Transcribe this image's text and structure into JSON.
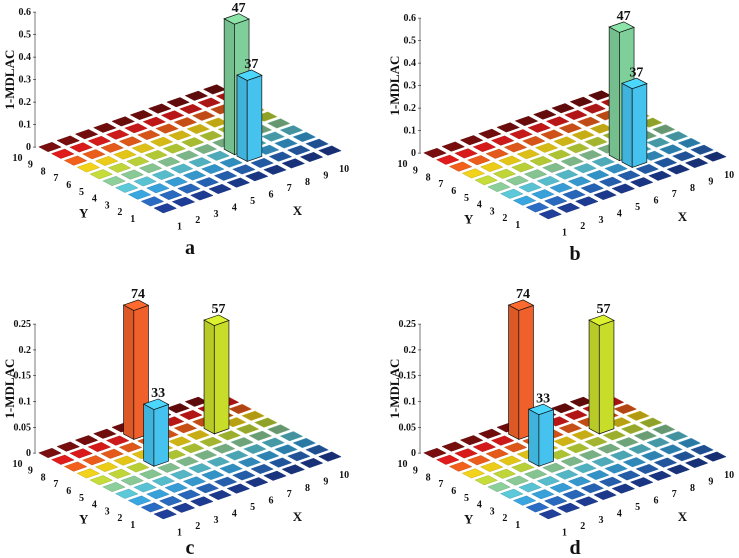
{
  "chart_data": [
    {
      "type": "bar3d",
      "panel_label": "a",
      "xlabel": "X",
      "ylabel": "Y",
      "zlabel": "1-MDLAC",
      "xticks": [
        "1",
        "2",
        "3",
        "4",
        "5",
        "6",
        "7",
        "8",
        "9",
        "10"
      ],
      "yticks": [
        "1",
        "2",
        "3",
        "4",
        "5",
        "6",
        "7",
        "8",
        "9",
        "10"
      ],
      "zticks": [
        "0",
        "0.1",
        "0.2",
        "0.3",
        "0.4",
        "0.5",
        "0.6"
      ],
      "zlim": [
        0,
        0.6
      ],
      "bars": [
        {
          "label": "47",
          "value": 0.58,
          "x": 7,
          "y": 4,
          "color": "#7fcf9a"
        },
        {
          "label": "37",
          "value": 0.36,
          "x": 7,
          "y": 3,
          "color": "#45c3ee"
        }
      ]
    },
    {
      "type": "bar3d",
      "panel_label": "b",
      "xlabel": "X",
      "ylabel": "Y",
      "zlabel": "1-MDLAC",
      "xticks": [
        "1",
        "2",
        "3",
        "4",
        "5",
        "6",
        "7",
        "8",
        "9",
        "10"
      ],
      "yticks": [
        "1",
        "2",
        "3",
        "4",
        "5",
        "6",
        "7",
        "8",
        "9",
        "10"
      ],
      "zticks": [
        "0",
        "0.1",
        "0.2",
        "0.3",
        "0.4",
        "0.5",
        "0.6"
      ],
      "zlim": [
        0,
        0.6
      ],
      "bars": [
        {
          "label": "47",
          "value": 0.57,
          "x": 7,
          "y": 4,
          "color": "#7fcf9a"
        },
        {
          "label": "37",
          "value": 0.35,
          "x": 7,
          "y": 3,
          "color": "#45c3ee"
        }
      ]
    },
    {
      "type": "bar3d",
      "panel_label": "c",
      "xlabel": "X",
      "ylabel": "Y",
      "zlabel": "1-MDLAC",
      "xticks": [
        "1",
        "2",
        "3",
        "4",
        "5",
        "6",
        "7",
        "8",
        "9",
        "10"
      ],
      "yticks": [
        "1",
        "2",
        "3",
        "4",
        "5",
        "6",
        "7",
        "8",
        "9",
        "10"
      ],
      "zticks": [
        "0",
        "0.05",
        "0.1",
        "0.15",
        "0.2",
        "0.25"
      ],
      "zlim": [
        0,
        0.25
      ],
      "bars": [
        {
          "label": "74",
          "value": 0.25,
          "x": 5,
          "y": 9,
          "color": "#f0602a"
        },
        {
          "label": "57",
          "value": 0.21,
          "x": 8,
          "y": 7,
          "color": "#c8dc2a"
        },
        {
          "label": "33",
          "value": 0.11,
          "x": 4,
          "y": 6,
          "color": "#45c3ee"
        }
      ]
    },
    {
      "type": "bar3d",
      "panel_label": "d",
      "xlabel": "X",
      "ylabel": "Y",
      "zlabel": "1-MDLAC",
      "xticks": [
        "1",
        "2",
        "3",
        "4",
        "5",
        "6",
        "7",
        "8",
        "9",
        "10"
      ],
      "yticks": [
        "1",
        "2",
        "3",
        "4",
        "5",
        "6",
        "7",
        "8",
        "9",
        "10"
      ],
      "zticks": [
        "0",
        "0.05",
        "0.1",
        "0.15",
        "0.2",
        "0.25"
      ],
      "zlim": [
        0,
        0.25
      ],
      "bars": [
        {
          "label": "74",
          "value": 0.25,
          "x": 5,
          "y": 9,
          "color": "#f0602a"
        },
        {
          "label": "57",
          "value": 0.21,
          "x": 8,
          "y": 7,
          "color": "#c8dc2a"
        },
        {
          "label": "33",
          "value": 0.1,
          "x": 4,
          "y": 6,
          "color": "#45c3ee"
        }
      ]
    }
  ],
  "row_colors": [
    "#1a2270",
    "#1f3f9a",
    "#2a6cc4",
    "#3aa6e0",
    "#5cc8d8",
    "#8dcf9a",
    "#c5dc3a",
    "#f2d21a",
    "#f2601c",
    "#e01b1b",
    "#7a0e0e"
  ]
}
